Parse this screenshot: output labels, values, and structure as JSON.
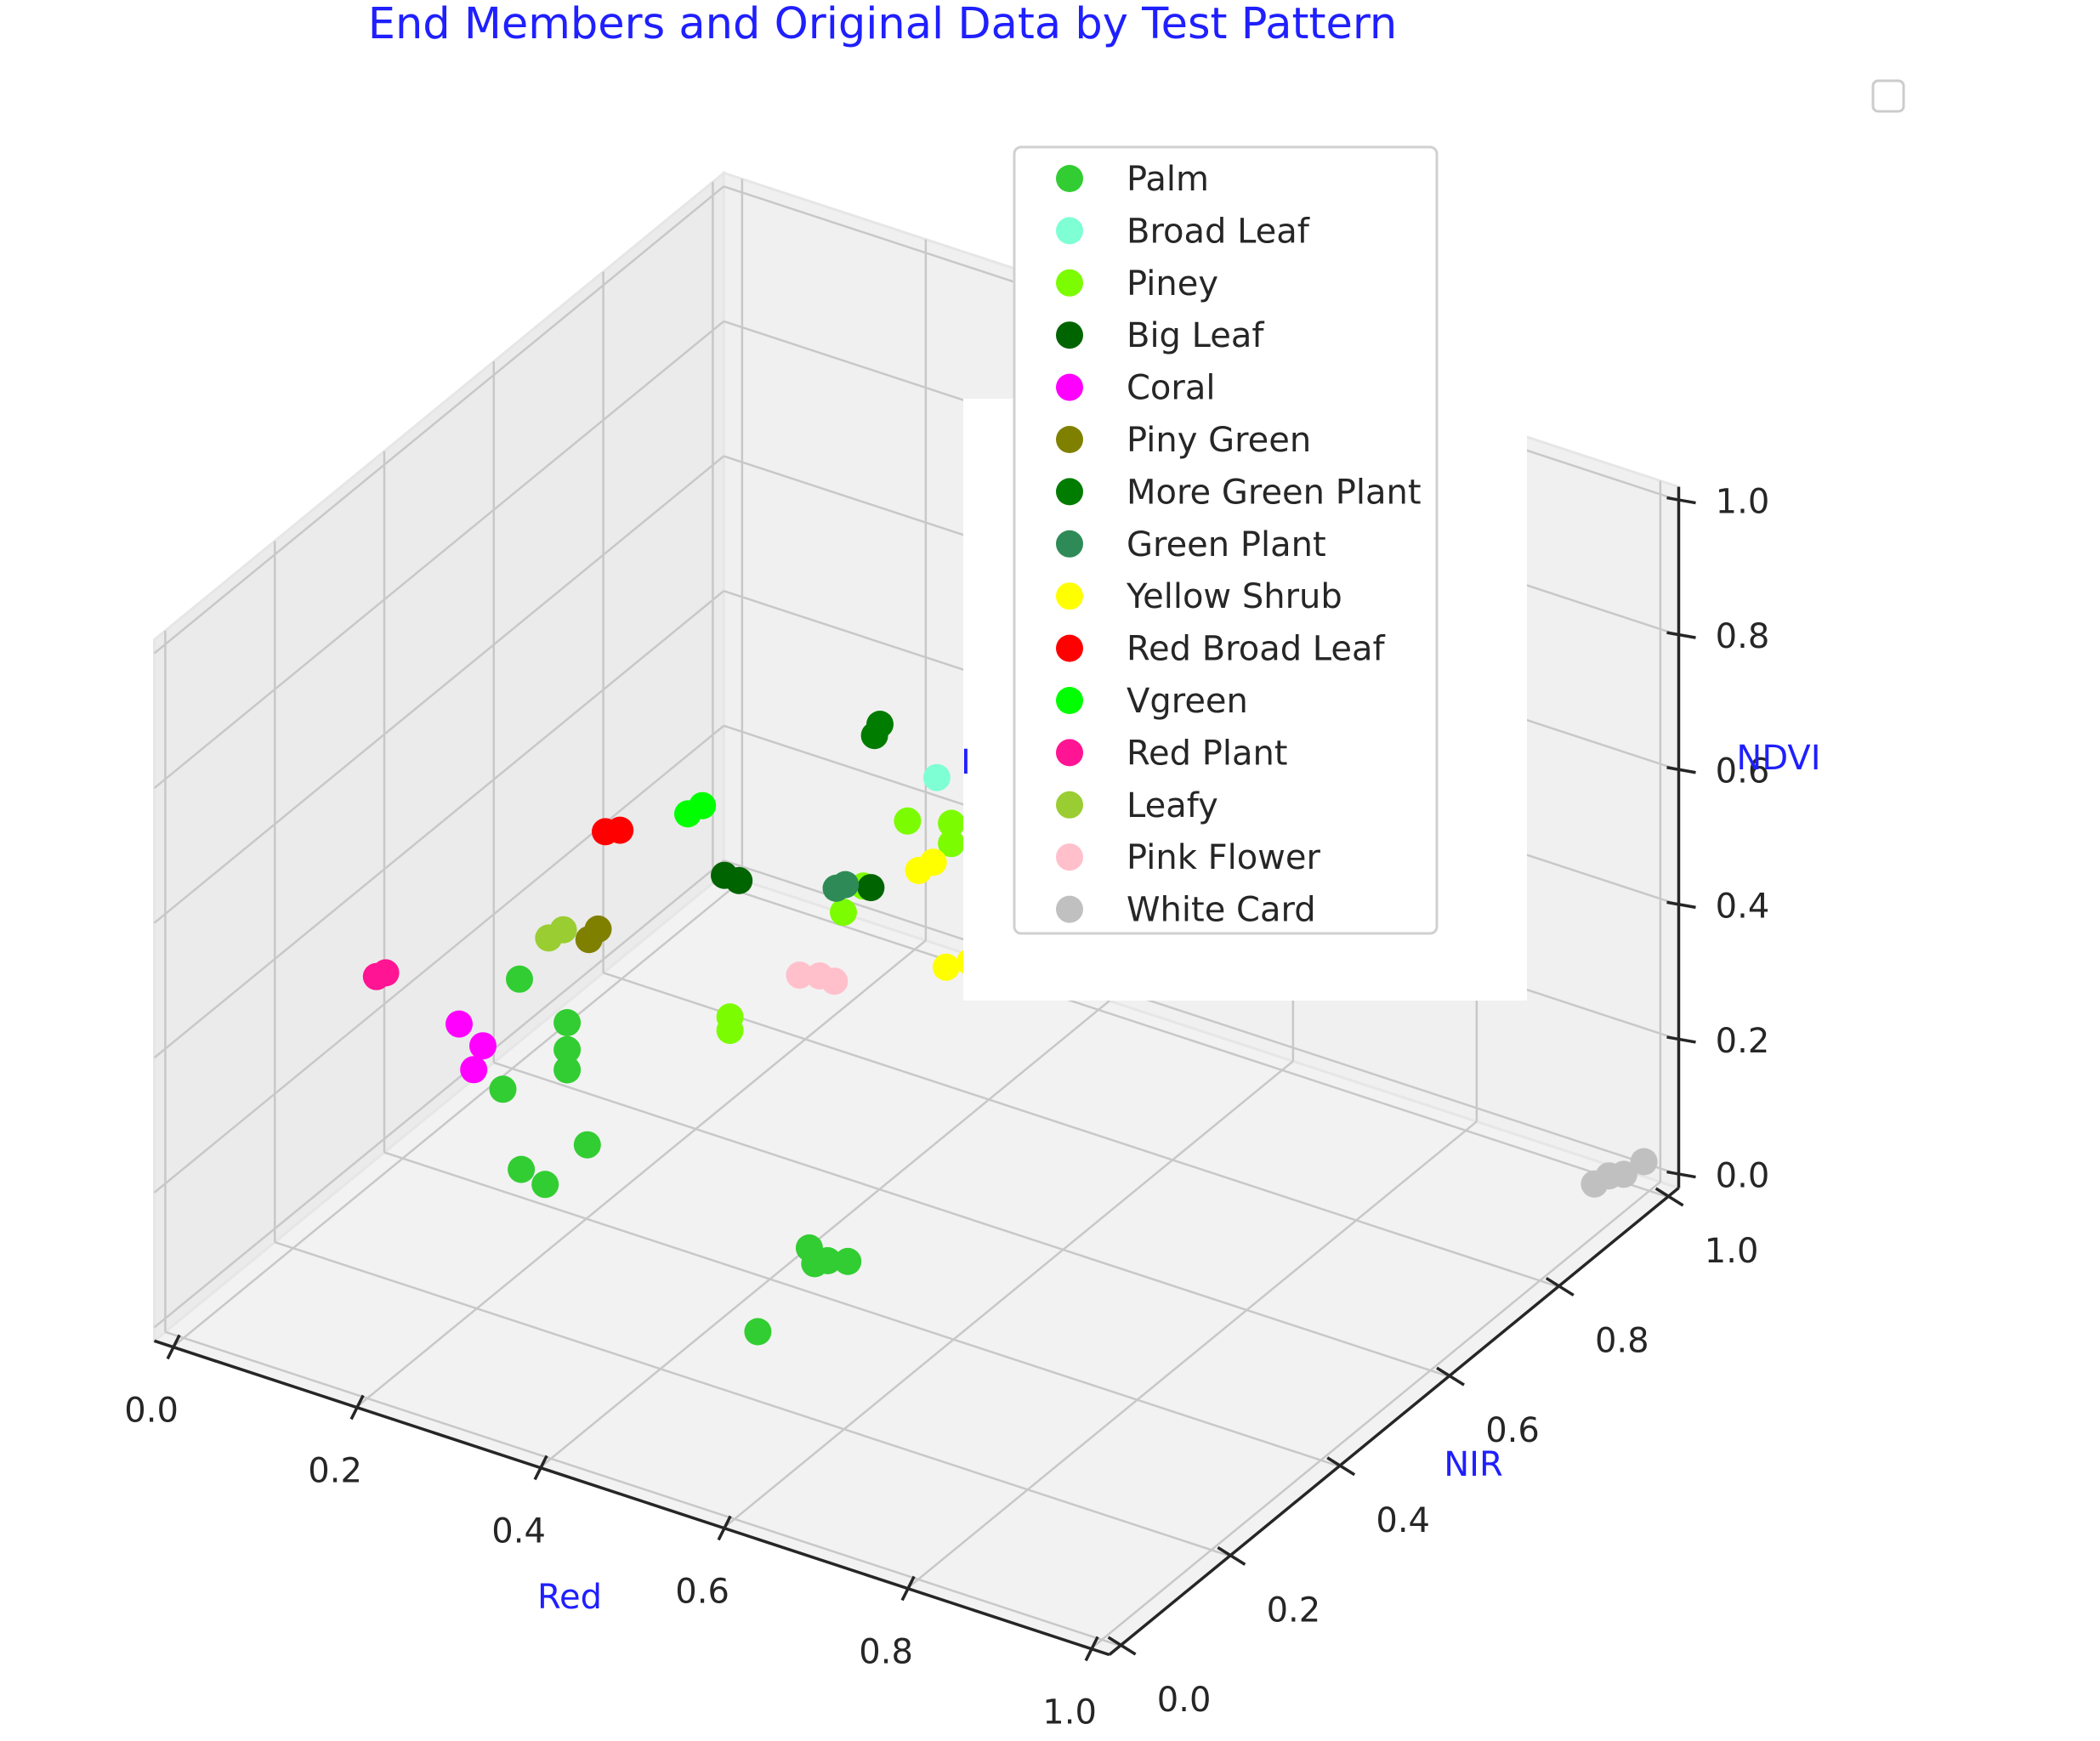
{
  "chart_data": {
    "type": "scatter",
    "projection": "3d",
    "title": "End Members and Original Data by Test Pattern",
    "xlabel": "Red",
    "ylabel": "NIR",
    "zlabel": "NDVI",
    "partial_label": "I",
    "accent_color": "#1f1fff",
    "xlim": [
      0,
      1
    ],
    "ylim": [
      0,
      1
    ],
    "zlim": [
      0,
      1
    ],
    "xticks": [
      "0.0",
      "0.2",
      "0.4",
      "0.6",
      "0.8",
      "1.0"
    ],
    "yticks": [
      "0.0",
      "0.2",
      "0.4",
      "0.6",
      "0.8",
      "1.0"
    ],
    "zticks": [
      "0.0",
      "0.2",
      "0.4",
      "0.6",
      "0.8",
      "1.0"
    ],
    "grid": true,
    "legend_position": "upper-center",
    "series": [
      {
        "name": "Palm",
        "color": "#32cd32",
        "points": [
          [
            0.33,
            0.06,
            0.62
          ],
          [
            0.37,
            0.08,
            0.56
          ],
          [
            0.37,
            0.08,
            0.52
          ],
          [
            0.37,
            0.08,
            0.49
          ],
          [
            0.3,
            0.08,
            0.43
          ],
          [
            0.38,
            0.1,
            0.37
          ],
          [
            0.32,
            0.08,
            0.32
          ],
          [
            0.34,
            0.09,
            0.3
          ],
          [
            0.58,
            0.17,
            0.26
          ],
          [
            0.6,
            0.17,
            0.25
          ],
          [
            0.58,
            0.18,
            0.23
          ],
          [
            0.61,
            0.19,
            0.24
          ],
          [
            0.53,
            0.16,
            0.12
          ]
        ]
      },
      {
        "name": "Broad Leaf",
        "color": "#7fffd4",
        "points": [
          [
            0.58,
            0.6,
            1.0
          ],
          [
            0.61,
            0.6,
            0.96
          ],
          [
            0.6,
            0.6,
            0.95
          ],
          [
            0.65,
            0.62,
            0.99
          ],
          [
            0.67,
            0.64,
            1.0
          ],
          [
            0.64,
            0.64,
            0.94
          ],
          [
            0.57,
            0.5,
            0.8
          ],
          [
            0.58,
            0.52,
            0.78
          ],
          [
            0.54,
            0.47,
            0.74
          ]
        ]
      },
      {
        "name": "Piney",
        "color": "#7cfc00",
        "points": [
          [
            0.52,
            0.45,
            0.68
          ],
          [
            0.55,
            0.48,
            0.67
          ],
          [
            0.55,
            0.48,
            0.64
          ],
          [
            0.49,
            0.42,
            0.59
          ],
          [
            0.48,
            0.4,
            0.56
          ],
          [
            0.44,
            0.26,
            0.48
          ],
          [
            0.44,
            0.26,
            0.46
          ]
        ]
      },
      {
        "name": "Big Leaf",
        "color": "#006400",
        "points": [
          [
            0.41,
            0.3,
            0.65
          ],
          [
            0.42,
            0.31,
            0.64
          ],
          [
            0.51,
            0.4,
            0.61
          ]
        ]
      },
      {
        "name": "Coral",
        "color": "#ff00ff",
        "points": [
          [
            0.3,
            0.0,
            0.58
          ],
          [
            0.32,
            0.01,
            0.55
          ],
          [
            0.31,
            0.01,
            0.51
          ]
        ]
      },
      {
        "name": "Piny Green",
        "color": "#808000",
        "points": [
          [
            0.35,
            0.17,
            0.63
          ],
          [
            0.34,
            0.17,
            0.61
          ]
        ]
      },
      {
        "name": "More Green Plant",
        "color": "#007c00",
        "points": [
          [
            0.49,
            0.44,
            0.8
          ],
          [
            0.49,
            0.45,
            0.81
          ]
        ]
      },
      {
        "name": "Green Plant",
        "color": "#2e8b57",
        "points": [
          [
            0.5,
            0.37,
            0.63
          ],
          [
            0.49,
            0.37,
            0.62
          ]
        ]
      },
      {
        "name": "Yellow Shrub",
        "color": "#ffff00",
        "points": [
          [
            0.55,
            0.42,
            0.64
          ],
          [
            0.56,
            0.43,
            0.65
          ],
          [
            0.58,
            0.42,
            0.51
          ],
          [
            0.6,
            0.43,
            0.52
          ]
        ]
      },
      {
        "name": "Red Broad Leaf",
        "color": "#ff0000",
        "points": [
          [
            0.34,
            0.2,
            0.75
          ],
          [
            0.35,
            0.21,
            0.75
          ]
        ]
      },
      {
        "name": "Vgreen",
        "color": "#00ff00",
        "points": [
          [
            0.4,
            0.25,
            0.77
          ],
          [
            0.41,
            0.26,
            0.78
          ]
        ]
      },
      {
        "name": "Red Plant",
        "color": "#ff1493",
        "points": [
          [
            0.21,
            0.0,
            0.61
          ],
          [
            0.22,
            0.0,
            0.62
          ]
        ]
      },
      {
        "name": "Leafy",
        "color": "#9acd32",
        "points": [
          [
            0.32,
            0.13,
            0.63
          ],
          [
            0.33,
            0.14,
            0.64
          ]
        ]
      },
      {
        "name": "Pink Flower",
        "color": "#ffc0cb",
        "points": [
          [
            0.48,
            0.32,
            0.52
          ],
          [
            0.49,
            0.34,
            0.51
          ],
          [
            0.5,
            0.35,
            0.5
          ]
        ]
      },
      {
        "name": "White Card",
        "color": "#c0c0c0",
        "points": [
          [
            0.98,
            0.96,
            0.02
          ],
          [
            0.99,
            0.97,
            0.02
          ],
          [
            1.0,
            0.99,
            0.03
          ],
          [
            0.97,
            0.95,
            0.01
          ]
        ]
      }
    ]
  }
}
